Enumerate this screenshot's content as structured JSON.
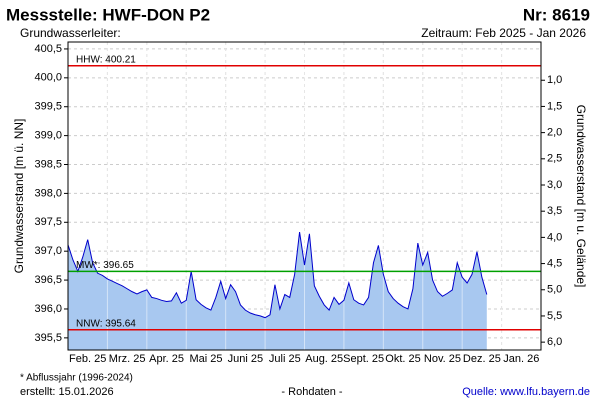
{
  "chart_data": {
    "type": "line",
    "title": "Messstelle: HWF-DON P2",
    "number": "Nr: 8619",
    "subtitle_left": "Grundwasserleiter:",
    "subtitle_right": "Zeitraum: Feb 2025 - Jan 2026",
    "ylabel": "Grundwasserstand [m ü. NN]",
    "y2label": "Grundwasserstand [m u. Gelände]",
    "xticks": [
      "Feb. 25",
      "Mrz. 25",
      "Apr. 25",
      "Mai 25",
      "Juni 25",
      "Juli 25",
      "Aug. 25",
      "Sept. 25",
      "Okt. 25",
      "Nov. 25",
      "Dez. 25",
      "Jan. 26"
    ],
    "ylim": [
      395.29,
      400.62
    ],
    "yticks": [
      {
        "value": 395.5,
        "label": "395,5"
      },
      {
        "value": 396.0,
        "label": "396,0"
      },
      {
        "value": 396.5,
        "label": "396,5"
      },
      {
        "value": 397.0,
        "label": "397,0"
      },
      {
        "value": 397.5,
        "label": "397,5"
      },
      {
        "value": 398.0,
        "label": "398,0"
      },
      {
        "value": 398.5,
        "label": "398,5"
      },
      {
        "value": 399.0,
        "label": "399,0"
      },
      {
        "value": 399.5,
        "label": "399,5"
      },
      {
        "value": 400.0,
        "label": "400,0"
      },
      {
        "value": 400.5,
        "label": "400,5"
      }
    ],
    "y2lim": [
      6.15,
      0.27
    ],
    "y2ticks": [
      {
        "value": 1,
        "label": "1,0"
      },
      {
        "value": 1.5,
        "label": "1,5"
      },
      {
        "value": 2,
        "label": "2,0"
      },
      {
        "value": 2.5,
        "label": "2,5"
      },
      {
        "value": 3,
        "label": "3,0"
      },
      {
        "value": 3.5,
        "label": "3,5"
      },
      {
        "value": 4,
        "label": "4,0"
      },
      {
        "value": 4.5,
        "label": "4,5"
      },
      {
        "value": 5,
        "label": "5,0"
      },
      {
        "value": 5.5,
        "label": "5,5"
      },
      {
        "value": 6,
        "label": "6,0"
      }
    ],
    "grid": true,
    "series": [
      {
        "color": "#0000cc",
        "fill": "#a8c8f0",
        "values": [
          397.11,
          396.85,
          396.65,
          396.9,
          397.2,
          396.8,
          396.62,
          396.58,
          396.52,
          396.48,
          396.44,
          396.4,
          396.35,
          396.3,
          396.26,
          396.3,
          396.33,
          396.2,
          396.18,
          396.15,
          396.13,
          396.14,
          396.28,
          396.1,
          396.15,
          396.65,
          396.16,
          396.08,
          396.02,
          395.98,
          396.2,
          396.48,
          396.18,
          396.42,
          396.3,
          396.07,
          395.98,
          395.93,
          395.9,
          395.88,
          395.85,
          395.9,
          396.42,
          396.0,
          396.25,
          396.2,
          396.6,
          397.33,
          396.76,
          397.3,
          396.4,
          396.22,
          396.07,
          395.98,
          396.2,
          396.08,
          396.15,
          396.45,
          396.16,
          396.1,
          396.07,
          396.2,
          396.8,
          397.1,
          396.6,
          396.3,
          396.18,
          396.1,
          396.04,
          396.0,
          396.35,
          397.14,
          396.76,
          396.98,
          396.5,
          396.3,
          396.22,
          396.27,
          396.33,
          396.8,
          396.55,
          396.45,
          396.6,
          396.99,
          396.55,
          396.25,
          null,
          null,
          null,
          null,
          null,
          null,
          null,
          null,
          null,
          null
        ]
      }
    ],
    "reference_lines": [
      {
        "label": "HHW: 400.21",
        "value": 400.21,
        "color": "#e00000"
      },
      {
        "label": "MW*: 396.65",
        "value": 396.65,
        "color": "#00a000"
      },
      {
        "label": "NNW: 395.64",
        "value": 395.64,
        "color": "#e00000"
      }
    ],
    "footnote": "* Abflussjahr (1996-2024)",
    "created": "erstellt:  15.01.2026",
    "note": "- Rohdaten -",
    "source": "Quelle: www.lfu.bayern.de"
  }
}
